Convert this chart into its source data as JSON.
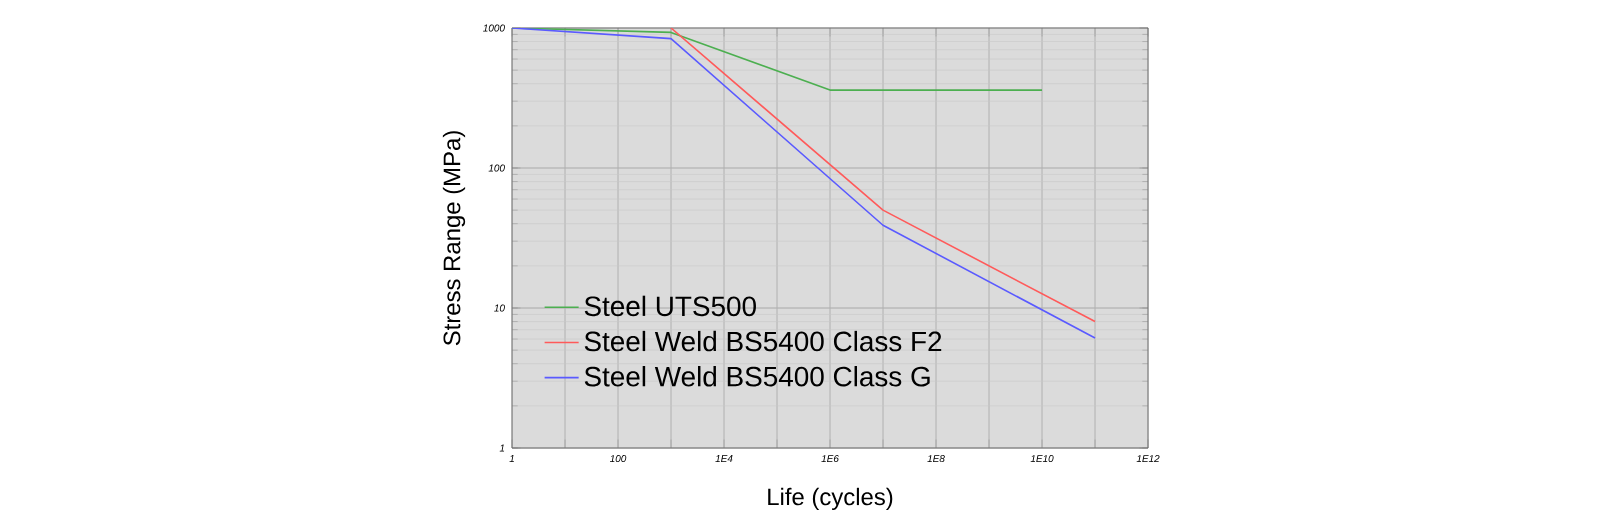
{
  "chart_data": {
    "type": "line",
    "xlabel": "Life (cycles)",
    "ylabel": "Stress Range (MPa)",
    "log": "xy",
    "xlim": [
      1,
      1000000000000
    ],
    "ylim": [
      1,
      1000
    ],
    "xticks": [
      1,
      {
        "value": 10,
        "label": null
      },
      100,
      {
        "value": 1000,
        "label": null
      },
      {
        "value": 10000,
        "label": "1E4"
      },
      {
        "value": 100000,
        "label": null
      },
      {
        "value": 1000000,
        "label": "1E6"
      },
      {
        "value": 10000000,
        "label": null
      },
      {
        "value": 100000000,
        "label": "1E8"
      },
      {
        "value": 1000000000,
        "label": null
      },
      {
        "value": 10000000000,
        "label": "1E10"
      },
      {
        "value": 100000000000,
        "label": null
      },
      {
        "value": 1000000000000,
        "label": "1E12"
      }
    ],
    "yticks": [
      1,
      10,
      100,
      1000
    ],
    "grid": true,
    "legend": "bottom left",
    "line_style": "solid",
    "marker": "none",
    "series": [
      {
        "name": "Steel UTS500",
        "color": "#4caf50",
        "x": [
          1,
          1000,
          1000000,
          10000000000
        ],
        "values": [
          1000,
          930,
          360,
          360
        ]
      },
      {
        "name": "Steel Weld BS5400 Class F2",
        "color": "#ff5a5a",
        "x": [
          1000,
          10000000,
          100000000000
        ],
        "values": [
          1000,
          50,
          8
        ]
      },
      {
        "name": "Steel Weld BS5400 Class G",
        "color": "#5a5aff",
        "x": [
          1,
          1000,
          10000000,
          100000000000
        ],
        "values": [
          1000,
          840,
          39,
          6.1
        ]
      }
    ]
  }
}
